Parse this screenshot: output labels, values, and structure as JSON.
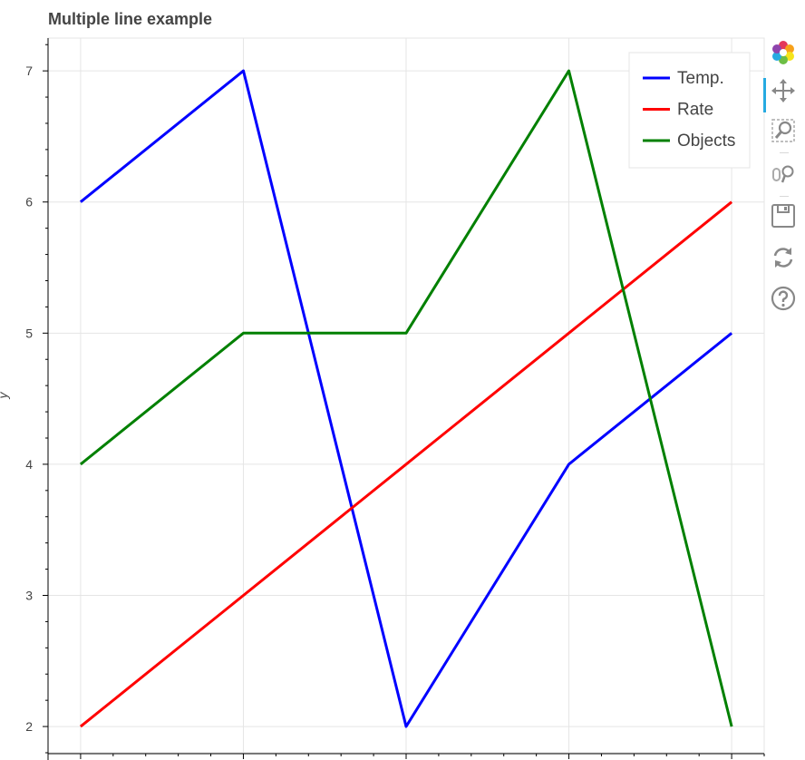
{
  "chart_data": {
    "type": "line",
    "title": "Multiple line example",
    "xlabel": "",
    "ylabel": "y",
    "x": [
      1,
      2,
      3,
      4,
      5
    ],
    "xlim": [
      0.8,
      5.2
    ],
    "ylim": [
      1.8,
      7.25
    ],
    "yticks": [
      2,
      3,
      4,
      5,
      6,
      7
    ],
    "grid": true,
    "legend_position": "top-right",
    "series": [
      {
        "name": "Temp.",
        "color": "#0000ff",
        "values": [
          6,
          7,
          2,
          4,
          5
        ]
      },
      {
        "name": "Rate",
        "color": "#ff0000",
        "values": [
          2,
          3,
          4,
          5,
          6
        ]
      },
      {
        "name": "Objects",
        "color": "#008000",
        "values": [
          4,
          5,
          5,
          7,
          2
        ]
      }
    ]
  },
  "toolbar": {
    "tools": [
      {
        "icon": "bokeh-logo-icon",
        "label": "Bokeh logo"
      },
      {
        "icon": "pan-icon",
        "label": "Pan",
        "active": true
      },
      {
        "icon": "box-zoom-icon",
        "label": "Box Zoom"
      },
      {
        "icon": "wheel-zoom-icon",
        "label": "Wheel Zoom"
      },
      {
        "icon": "save-icon",
        "label": "Save"
      },
      {
        "icon": "reset-icon",
        "label": "Reset"
      },
      {
        "icon": "help-icon",
        "label": "Help"
      }
    ]
  }
}
